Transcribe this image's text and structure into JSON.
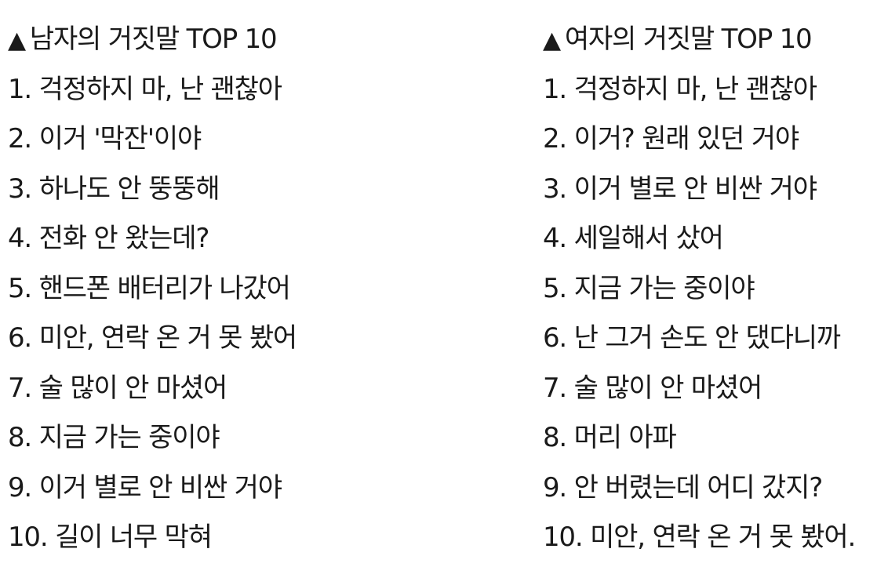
{
  "men": {
    "marker": "▲",
    "title": "남자의 거짓말 TOP 10",
    "items": [
      "1. 걱정하지 마, 난 괜찮아",
      "2. 이거 '막잔'이야",
      "3. 하나도 안 뚱뚱해",
      "4. 전화 안 왔는데?",
      "5. 핸드폰 배터리가 나갔어",
      "6. 미안, 연락 온 거 못 봤어",
      "7. 술 많이 안 마셨어",
      "8. 지금 가는 중이야",
      "9. 이거 별로 안 비싼 거야",
      "10. 길이 너무 막혀"
    ]
  },
  "women": {
    "marker": "▲",
    "title": "여자의 거짓말 TOP 10",
    "items": [
      "1. 걱정하지 마, 난 괜찮아",
      "2. 이거? 원래 있던 거야",
      "3. 이거 별로 안 비싼 거야",
      "4. 세일해서 샀어",
      "5. 지금 가는 중이야",
      "6. 난 그거 손도 안 댔다니까",
      "7. 술 많이 안 마셨어",
      "8. 머리 아파",
      "9. 안 버렸는데 어디 갔지?",
      "10. 미안, 연락 온 거 못 봤어."
    ]
  }
}
